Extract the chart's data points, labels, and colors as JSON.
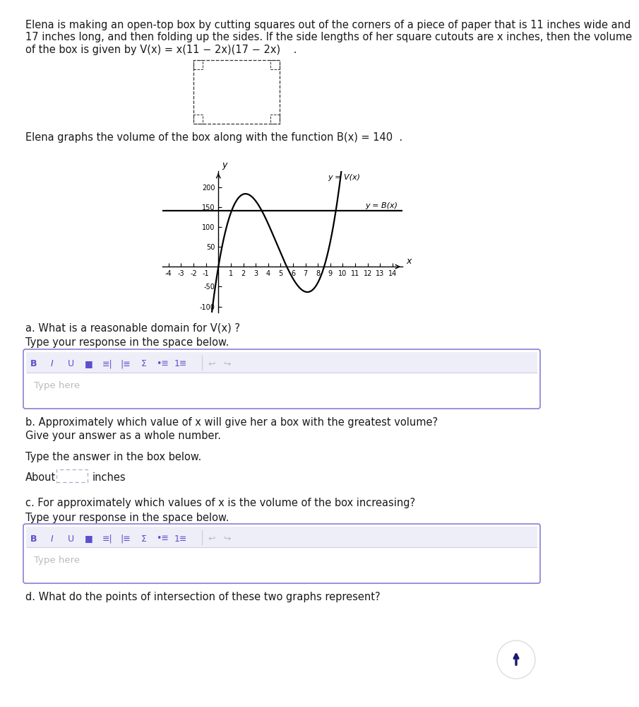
{
  "bg_color": "#ffffff",
  "text_color": "#1a1a1a",
  "purple_color": "#5b4fcf",
  "light_purple_border": "#8b7fd4",
  "gray_text": "#aaaaaa",
  "divider_color": "#d0cce8",
  "p1_lines": [
    "Elena is making an open-top box by cutting squares out of the corners of a piece of paper that is 11 inches wide and",
    "17 inches long, and then folding up the sides. If the side lengths of her square cutouts are x inches, then the volume",
    "of the box is given by V(x) = x(11 − 2x)(17 − 2x)    ."
  ],
  "p2": "Elena graphs the volume of the box along with the function B(x) = 140  .",
  "graph": {
    "xlim": [
      -4.5,
      14.8
    ],
    "ylim": [
      -115,
      240
    ],
    "xticks": [
      -4,
      -3,
      -2,
      -1,
      1,
      2,
      3,
      4,
      5,
      6,
      7,
      8,
      9,
      10,
      11,
      12,
      13,
      14
    ],
    "yticks": [
      -100,
      -50,
      50,
      100,
      150,
      200
    ],
    "Bx_value": 140,
    "Vx_label": "y = V(x)",
    "Bx_label": "y = B(x)"
  },
  "qa_label": "a. What is a reasonable domain for V(x) ?",
  "qa_prompt": "Type your response in the space below.",
  "qb_label": "b. Approximately which value of x will give her a box with the greatest volume?",
  "qb_sub": "Give your answer as a whole number.",
  "qb_prompt": "Type the answer in the box below.",
  "qb_about": "About",
  "qb_inches": "inches",
  "qc_label": "c. For approximately which values of x is the volume of the box increasing?",
  "qc_prompt": "Type your response in the space below.",
  "qd_label": "d. What do the points of intersection of these two graphs represent?",
  "type_here": "Type here"
}
